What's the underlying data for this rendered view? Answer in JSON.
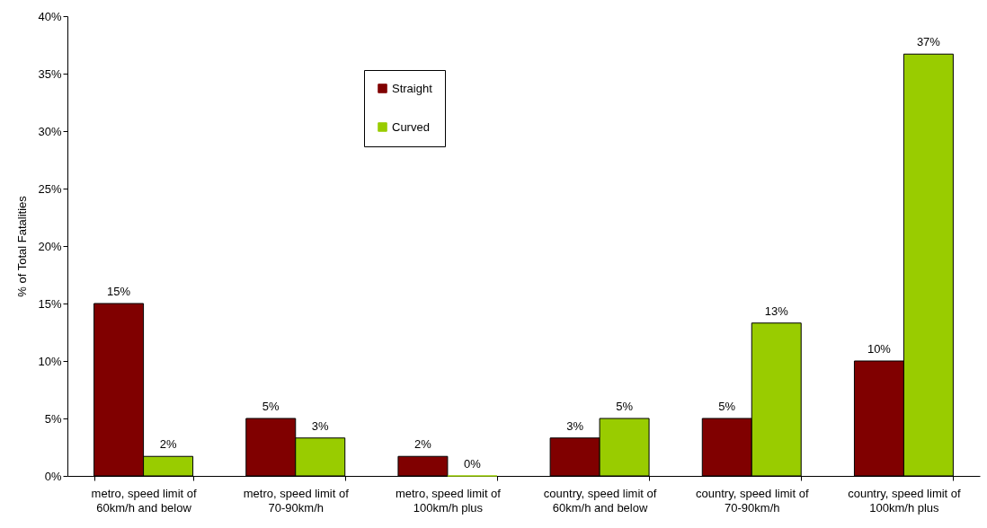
{
  "chart_data": {
    "type": "bar",
    "ylabel": "% of Total Fatalities",
    "categories": [
      "metro, speed limit of 60km/h and below",
      "metro, speed limit of 70-90km/h",
      "metro, speed limit of 100km/h plus",
      "country, speed limit of 60km/h and below",
      "country, speed limit of 70-90km/h",
      "country, speed limit of 100km/h plus"
    ],
    "series": [
      {
        "name": "Straight",
        "color": "#800000",
        "values": [
          15,
          5,
          1.7,
          3.3,
          5,
          10
        ],
        "value_labels": [
          "15%",
          "5%",
          "2%",
          "3%",
          "5%",
          "10%"
        ]
      },
      {
        "name": "Curved",
        "color": "#99cc00",
        "values": [
          1.7,
          3.3,
          0,
          5,
          13.3,
          36.7
        ],
        "value_labels": [
          "2%",
          "3%",
          "0%",
          "5%",
          "13%",
          "37%"
        ]
      }
    ],
    "ylim": [
      0,
      40
    ],
    "yticks": [
      {
        "value": 0,
        "label": "0%"
      },
      {
        "value": 5,
        "label": "5%"
      },
      {
        "value": 10,
        "label": "10%"
      },
      {
        "value": 15,
        "label": "15%"
      },
      {
        "value": 20,
        "label": "20%"
      },
      {
        "value": 25,
        "label": "25%"
      },
      {
        "value": 30,
        "label": "30%"
      },
      {
        "value": 35,
        "label": "35%"
      },
      {
        "value": 40,
        "label": "40%"
      }
    ],
    "grid": false,
    "legend": "top"
  }
}
